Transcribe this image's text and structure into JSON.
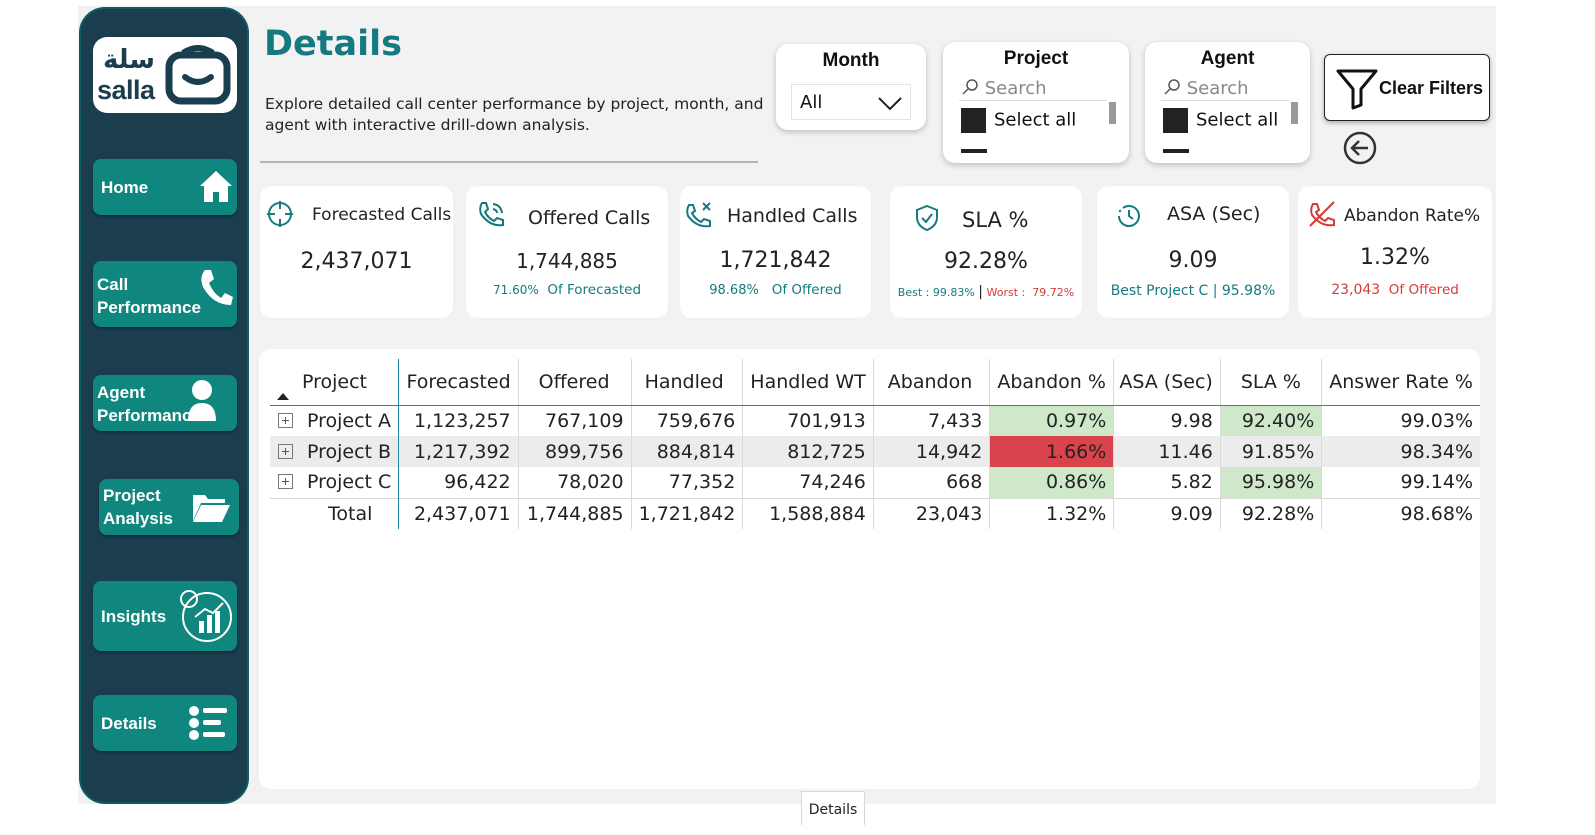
{
  "logo": {
    "arabic": "سلة",
    "english": "salla"
  },
  "nav": {
    "home": "Home",
    "call_performance": "Call\nPerformance",
    "agent_performance": "Agent\nPerformance",
    "project_analysis": "Project\nAnalysis",
    "insights": "Insights",
    "details": "Details"
  },
  "header": {
    "title": "Details",
    "subtitle": "Explore detailed call center performance by project, month, and agent with interactive drill-down analysis."
  },
  "slicers": {
    "month": {
      "title": "Month",
      "value": "All"
    },
    "project": {
      "title": "Project",
      "search_placeholder": "Search",
      "select_all": "Select all"
    },
    "agent": {
      "title": "Agent",
      "search_placeholder": "Search",
      "select_all": "Select all"
    }
  },
  "clear_filters": "Clear Filters",
  "kpis": {
    "forecasted": {
      "title": "Forecasted  Calls",
      "value": "2,437,071"
    },
    "offered": {
      "title": "Offered Calls",
      "value": "1,744,885",
      "sub_pct": "71.60%",
      "sub_text": "Of Forecasted"
    },
    "handled": {
      "title": "Handled Calls",
      "value": "1,721,842",
      "sub_pct": "98.68%",
      "sub_text": "Of Offered"
    },
    "sla": {
      "title": "SLA %",
      "value": "92.28%",
      "best_label": "Best :",
      "best_value": "99.83%",
      "sep": "|",
      "worst_label": "Worst :",
      "worst_value": "79.72%"
    },
    "asa": {
      "title": "ASA (Sec)",
      "value": "9.09",
      "sub": "Best Project C | 95.98%"
    },
    "abandon": {
      "title": "Abandon Rate%",
      "value": "1.32%",
      "sub_count": "23,043",
      "sub_text": "Of Offered"
    }
  },
  "table": {
    "headers": [
      "Project",
      "Forecasted",
      "Offered",
      "Handled",
      "Handled WT",
      "Abandon",
      "Abandon %",
      "ASA (Sec)",
      "SLA %",
      "Answer Rate %"
    ],
    "rows": [
      [
        "Project A",
        "1,123,257",
        "767,109",
        "759,676",
        "701,913",
        "7,433",
        "0.97%",
        "9.98",
        "92.40%",
        "99.03%"
      ],
      [
        "Project B",
        "1,217,392",
        "899,756",
        "884,814",
        "812,725",
        "14,942",
        "1.66%",
        "11.46",
        "91.85%",
        "98.34%"
      ],
      [
        "Project C",
        "96,422",
        "78,020",
        "77,352",
        "74,246",
        "668",
        "0.86%",
        "5.82",
        "95.98%",
        "99.14%"
      ]
    ],
    "total": [
      "Total",
      "2,437,071",
      "1,744,885",
      "1,721,842",
      "1,588,884",
      "23,043",
      "1.32%",
      "9.09",
      "92.28%",
      "98.68%"
    ],
    "colors": {
      "good": "#cfe8c9",
      "bad": "#d9434b"
    }
  },
  "page_tab": "Details",
  "colors": {
    "sidebar": "#1b3e4f",
    "nav_button": "#10877e",
    "title": "#157a80",
    "red": "#d33b3b"
  }
}
